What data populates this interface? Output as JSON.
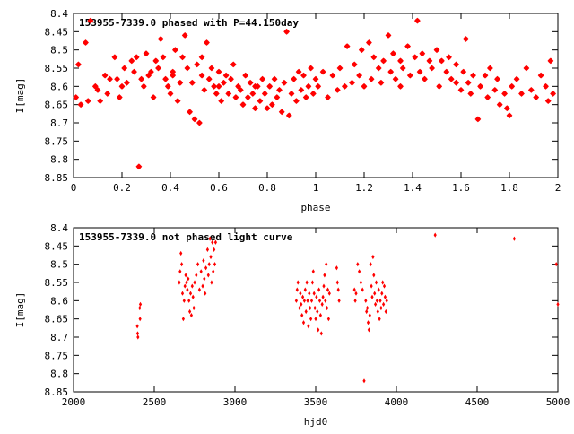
{
  "chart_data": [
    {
      "type": "scatter",
      "title": "153955-7339.0 phased with P=44.150day",
      "xlabel": "phase",
      "ylabel": "I[mag]",
      "xlim": [
        0,
        2
      ],
      "ylim": [
        8.85,
        8.4
      ],
      "y_inverted": true,
      "grid": false,
      "marker_color": "#ff0000",
      "xticks": [
        "0",
        "0.2",
        "0.4",
        "0.6",
        "0.8",
        "1",
        "1.2",
        "1.4",
        "1.6",
        "1.8",
        "2"
      ],
      "yticks": [
        "8.4",
        "8.45",
        "8.5",
        "8.55",
        "8.6",
        "8.65",
        "8.7",
        "8.75",
        "8.8",
        "8.85"
      ],
      "xtick_values": [
        0,
        0.2,
        0.4,
        0.6,
        0.8,
        1,
        1.2,
        1.4,
        1.6,
        1.8,
        2
      ],
      "ytick_values": [
        8.4,
        8.45,
        8.5,
        8.55,
        8.6,
        8.65,
        8.7,
        8.75,
        8.8,
        8.85
      ],
      "points": [
        [
          0.01,
          8.63
        ],
        [
          0.02,
          8.54
        ],
        [
          0.03,
          8.65
        ],
        [
          0.05,
          8.48
        ],
        [
          0.06,
          8.64
        ],
        [
          0.07,
          8.42
        ],
        [
          0.09,
          8.6
        ],
        [
          0.1,
          8.61
        ],
        [
          0.11,
          8.64
        ],
        [
          0.13,
          8.57
        ],
        [
          0.14,
          8.62
        ],
        [
          0.15,
          8.58
        ],
        [
          0.17,
          8.52
        ],
        [
          0.18,
          8.58
        ],
        [
          0.19,
          8.63
        ],
        [
          0.21,
          8.55
        ],
        [
          0.22,
          8.59
        ],
        [
          0.24,
          8.53
        ],
        [
          0.25,
          8.56
        ],
        [
          0.26,
          8.52
        ],
        [
          0.27,
          8.82
        ],
        [
          0.28,
          8.58
        ],
        [
          0.29,
          8.6
        ],
        [
          0.3,
          8.51
        ],
        [
          0.31,
          8.57
        ],
        [
          0.32,
          8.56
        ],
        [
          0.33,
          8.63
        ],
        [
          0.34,
          8.53
        ],
        [
          0.35,
          8.55
        ],
        [
          0.36,
          8.47
        ],
        [
          0.37,
          8.52
        ],
        [
          0.38,
          8.58
        ],
        [
          0.39,
          8.6
        ],
        [
          0.4,
          8.62
        ],
        [
          0.41,
          8.57
        ],
        [
          0.42,
          8.5
        ],
        [
          0.43,
          8.64
        ],
        [
          0.44,
          8.59
        ],
        [
          0.45,
          8.52
        ],
        [
          0.46,
          8.46
        ],
        [
          0.47,
          8.55
        ],
        [
          0.48,
          8.67
        ],
        [
          0.49,
          8.59
        ],
        [
          0.5,
          8.69
        ],
        [
          0.51,
          8.54
        ],
        [
          0.52,
          8.7
        ],
        [
          0.53,
          8.57
        ],
        [
          0.54,
          8.61
        ],
        [
          0.55,
          8.48
        ],
        [
          0.56,
          8.58
        ],
        [
          0.57,
          8.55
        ],
        [
          0.58,
          8.6
        ],
        [
          0.59,
          8.62
        ],
        [
          0.6,
          8.56
        ],
        [
          0.61,
          8.64
        ],
        [
          0.62,
          8.59
        ],
        [
          0.63,
          8.57
        ],
        [
          0.64,
          8.62
        ],
        [
          0.65,
          8.58
        ],
        [
          0.66,
          8.54
        ],
        [
          0.67,
          8.63
        ],
        [
          0.68,
          8.6
        ],
        [
          0.69,
          8.61
        ],
        [
          0.7,
          8.65
        ],
        [
          0.71,
          8.57
        ],
        [
          0.72,
          8.63
        ],
        [
          0.73,
          8.59
        ],
        [
          0.74,
          8.62
        ],
        [
          0.75,
          8.66
        ],
        [
          0.76,
          8.6
        ],
        [
          0.77,
          8.64
        ],
        [
          0.78,
          8.58
        ],
        [
          0.79,
          8.62
        ],
        [
          0.8,
          8.66
        ],
        [
          0.81,
          8.6
        ],
        [
          0.82,
          8.65
        ],
        [
          0.83,
          8.58
        ],
        [
          0.84,
          8.63
        ],
        [
          0.85,
          8.61
        ],
        [
          0.86,
          8.67
        ],
        [
          0.87,
          8.59
        ],
        [
          0.88,
          8.45
        ],
        [
          0.89,
          8.68
        ],
        [
          0.9,
          8.62
        ],
        [
          0.91,
          8.58
        ],
        [
          0.92,
          8.64
        ],
        [
          0.93,
          8.56
        ],
        [
          0.94,
          8.61
        ],
        [
          0.95,
          8.57
        ],
        [
          0.96,
          8.63
        ],
        [
          0.97,
          8.6
        ],
        [
          0.98,
          8.55
        ],
        [
          0.99,
          8.62
        ],
        [
          1.0,
          8.58
        ],
        [
          1.01,
          8.6
        ],
        [
          1.03,
          8.56
        ],
        [
          1.05,
          8.63
        ],
        [
          1.07,
          8.57
        ],
        [
          1.09,
          8.61
        ],
        [
          1.1,
          8.55
        ],
        [
          1.12,
          8.6
        ],
        [
          1.13,
          8.49
        ],
        [
          1.15,
          8.59
        ],
        [
          1.16,
          8.54
        ],
        [
          1.18,
          8.57
        ],
        [
          1.19,
          8.5
        ],
        [
          1.2,
          8.6
        ],
        [
          1.22,
          8.48
        ],
        [
          1.23,
          8.58
        ],
        [
          1.24,
          8.52
        ],
        [
          1.26,
          8.55
        ],
        [
          1.27,
          8.59
        ],
        [
          1.28,
          8.53
        ],
        [
          1.3,
          8.46
        ],
        [
          1.31,
          8.56
        ],
        [
          1.32,
          8.51
        ],
        [
          1.33,
          8.58
        ],
        [
          1.35,
          8.53
        ],
        [
          1.36,
          8.55
        ],
        [
          1.38,
          8.49
        ],
        [
          1.39,
          8.57
        ],
        [
          1.41,
          8.52
        ],
        [
          1.42,
          8.42
        ],
        [
          1.43,
          8.56
        ],
        [
          1.44,
          8.51
        ],
        [
          1.45,
          8.58
        ],
        [
          1.47,
          8.53
        ],
        [
          1.48,
          8.55
        ],
        [
          1.5,
          8.5
        ],
        [
          1.51,
          8.6
        ],
        [
          1.52,
          8.53
        ],
        [
          1.54,
          8.56
        ],
        [
          1.55,
          8.52
        ],
        [
          1.56,
          8.58
        ],
        [
          1.58,
          8.54
        ],
        [
          1.6,
          8.61
        ],
        [
          1.61,
          8.56
        ],
        [
          1.62,
          8.47
        ],
        [
          1.63,
          8.59
        ],
        [
          1.64,
          8.62
        ],
        [
          1.65,
          8.57
        ],
        [
          1.67,
          8.69
        ],
        [
          1.68,
          8.6
        ],
        [
          1.7,
          8.57
        ],
        [
          1.71,
          8.63
        ],
        [
          1.72,
          8.55
        ],
        [
          1.74,
          8.61
        ],
        [
          1.75,
          8.58
        ],
        [
          1.76,
          8.65
        ],
        [
          1.78,
          8.62
        ],
        [
          1.79,
          8.66
        ],
        [
          1.8,
          8.68
        ],
        [
          1.81,
          8.6
        ],
        [
          1.83,
          8.58
        ],
        [
          1.85,
          8.62
        ],
        [
          1.87,
          8.55
        ],
        [
          1.89,
          8.61
        ],
        [
          1.91,
          8.63
        ],
        [
          1.93,
          8.57
        ],
        [
          1.95,
          8.6
        ],
        [
          1.96,
          8.64
        ],
        [
          1.97,
          8.53
        ],
        [
          1.98,
          8.62
        ],
        [
          0.41,
          8.56
        ],
        [
          0.53,
          8.52
        ],
        [
          0.75,
          8.6
        ],
        [
          1.35,
          8.6
        ],
        [
          1.58,
          8.59
        ],
        [
          0.6,
          8.6
        ],
        [
          0.2,
          8.6
        ]
      ]
    },
    {
      "type": "scatter",
      "title": "153955-7339.0 not phased light curve",
      "xlabel": "hjd0",
      "ylabel": "I[mag]",
      "xlim": [
        2000,
        5000
      ],
      "ylim": [
        8.85,
        8.4
      ],
      "y_inverted": true,
      "grid": false,
      "marker_color": "#ff0000",
      "xticks": [
        "2000",
        "2500",
        "3000",
        "3500",
        "4000",
        "4500",
        "5000"
      ],
      "yticks": [
        "8.4",
        "8.45",
        "8.5",
        "8.55",
        "8.6",
        "8.65",
        "8.7",
        "8.75",
        "8.8",
        "8.85"
      ],
      "xtick_values": [
        2000,
        2500,
        3000,
        3500,
        4000,
        4500,
        5000
      ],
      "ytick_values": [
        8.4,
        8.45,
        8.5,
        8.55,
        8.6,
        8.65,
        8.7,
        8.75,
        8.8,
        8.85
      ],
      "points": [
        [
          2395,
          8.67
        ],
        [
          2397,
          8.69
        ],
        [
          2399,
          8.7
        ],
        [
          2410,
          8.62
        ],
        [
          2412,
          8.65
        ],
        [
          2414,
          8.61
        ],
        [
          2655,
          8.55
        ],
        [
          2660,
          8.52
        ],
        [
          2665,
          8.47
        ],
        [
          2670,
          8.5
        ],
        [
          2675,
          8.58
        ],
        [
          2680,
          8.65
        ],
        [
          2685,
          8.6
        ],
        [
          2690,
          8.56
        ],
        [
          2695,
          8.53
        ],
        [
          2700,
          8.55
        ],
        [
          2705,
          8.57
        ],
        [
          2710,
          8.54
        ],
        [
          2715,
          8.6
        ],
        [
          2720,
          8.63
        ],
        [
          2725,
          8.58
        ],
        [
          2730,
          8.64
        ],
        [
          2735,
          8.56
        ],
        [
          2740,
          8.59
        ],
        [
          2745,
          8.62
        ],
        [
          2750,
          8.55
        ],
        [
          2760,
          8.53
        ],
        [
          2770,
          8.5
        ],
        [
          2780,
          8.57
        ],
        [
          2790,
          8.52
        ],
        [
          2800,
          8.56
        ],
        [
          2805,
          8.49
        ],
        [
          2810,
          8.54
        ],
        [
          2815,
          8.58
        ],
        [
          2820,
          8.51
        ],
        [
          2830,
          8.46
        ],
        [
          2835,
          8.53
        ],
        [
          2840,
          8.5
        ],
        [
          2845,
          8.43
        ],
        [
          2850,
          8.48
        ],
        [
          2855,
          8.55
        ],
        [
          2860,
          8.44
        ],
        [
          2865,
          8.52
        ],
        [
          2870,
          8.46
        ],
        [
          2875,
          8.5
        ],
        [
          2880,
          8.44
        ],
        [
          3380,
          8.6
        ],
        [
          3385,
          8.57
        ],
        [
          3390,
          8.55
        ],
        [
          3400,
          8.62
        ],
        [
          3405,
          8.58
        ],
        [
          3410,
          8.61
        ],
        [
          3415,
          8.64
        ],
        [
          3420,
          8.59
        ],
        [
          3425,
          8.66
        ],
        [
          3430,
          8.6
        ],
        [
          3435,
          8.57
        ],
        [
          3440,
          8.63
        ],
        [
          3445,
          8.55
        ],
        [
          3450,
          8.6
        ],
        [
          3455,
          8.67
        ],
        [
          3460,
          8.58
        ],
        [
          3465,
          8.62
        ],
        [
          3470,
          8.65
        ],
        [
          3475,
          8.6
        ],
        [
          3480,
          8.55
        ],
        [
          3485,
          8.52
        ],
        [
          3490,
          8.58
        ],
        [
          3495,
          8.62
        ],
        [
          3500,
          8.65
        ],
        [
          3505,
          8.59
        ],
        [
          3510,
          8.63
        ],
        [
          3515,
          8.68
        ],
        [
          3520,
          8.57
        ],
        [
          3525,
          8.6
        ],
        [
          3530,
          8.64
        ],
        [
          3535,
          8.69
        ],
        [
          3540,
          8.61
        ],
        [
          3545,
          8.59
        ],
        [
          3550,
          8.56
        ],
        [
          3555,
          8.53
        ],
        [
          3560,
          8.6
        ],
        [
          3565,
          8.5
        ],
        [
          3570,
          8.62
        ],
        [
          3575,
          8.57
        ],
        [
          3580,
          8.65
        ],
        [
          3585,
          8.58
        ],
        [
          3630,
          8.51
        ],
        [
          3635,
          8.55
        ],
        [
          3640,
          8.57
        ],
        [
          3645,
          8.6
        ],
        [
          3740,
          8.57
        ],
        [
          3745,
          8.6
        ],
        [
          3750,
          8.58
        ],
        [
          3760,
          8.5
        ],
        [
          3770,
          8.52
        ],
        [
          3780,
          8.55
        ],
        [
          3790,
          8.57
        ],
        [
          3800,
          8.82
        ],
        [
          3810,
          8.6
        ],
        [
          3815,
          8.63
        ],
        [
          3820,
          8.62
        ],
        [
          3825,
          8.66
        ],
        [
          3830,
          8.68
        ],
        [
          3835,
          8.64
        ],
        [
          3840,
          8.5
        ],
        [
          3845,
          8.56
        ],
        [
          3850,
          8.59
        ],
        [
          3855,
          8.48
        ],
        [
          3860,
          8.53
        ],
        [
          3865,
          8.58
        ],
        [
          3870,
          8.61
        ],
        [
          3875,
          8.55
        ],
        [
          3880,
          8.6
        ],
        [
          3885,
          8.63
        ],
        [
          3890,
          8.57
        ],
        [
          3895,
          8.65
        ],
        [
          3900,
          8.6
        ],
        [
          3905,
          8.62
        ],
        [
          3910,
          8.58
        ],
        [
          3915,
          8.55
        ],
        [
          3920,
          8.61
        ],
        [
          3925,
          8.56
        ],
        [
          3930,
          8.59
        ],
        [
          3935,
          8.63
        ],
        [
          3940,
          8.6
        ],
        [
          4240,
          8.42
        ],
        [
          4730,
          8.43
        ],
        [
          4990,
          8.5
        ],
        [
          5000,
          8.61
        ]
      ]
    }
  ]
}
